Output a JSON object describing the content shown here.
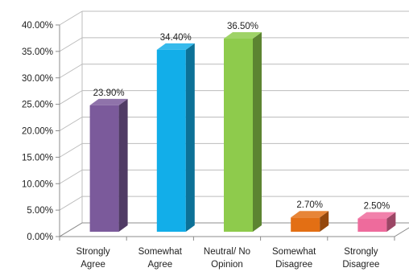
{
  "chart_data": {
    "type": "bar",
    "categories": [
      [
        "Strongly",
        "Agree"
      ],
      [
        "Somewhat",
        "Agree"
      ],
      [
        "Neutral/ No",
        "Opinion"
      ],
      [
        "Somewhat",
        "Disagree"
      ],
      [
        "Strongly",
        "Disagree"
      ]
    ],
    "values": [
      23.9,
      34.4,
      36.5,
      2.7,
      2.5
    ],
    "data_labels": [
      "23.90%",
      "34.40%",
      "36.50%",
      "2.70%",
      "2.50%"
    ],
    "colors": [
      "#7b5a9b",
      "#12aee9",
      "#8ecb4c",
      "#e36f14",
      "#ee6b9c"
    ],
    "ylim": [
      0,
      40
    ],
    "yticks": [
      {
        "value": 0,
        "label": "0.00%"
      },
      {
        "value": 5,
        "label": "5.00%"
      },
      {
        "value": 10,
        "label": "10.00%"
      },
      {
        "value": 15,
        "label": "15.00%"
      },
      {
        "value": 20,
        "label": "20.00%"
      },
      {
        "value": 25,
        "label": "25.00%"
      },
      {
        "value": 30,
        "label": "30.00%"
      },
      {
        "value": 35,
        "label": "35.00%"
      },
      {
        "value": 40,
        "label": "40.00%"
      }
    ],
    "grid": true,
    "style": "3d-column",
    "title": "",
    "xlabel": "",
    "ylabel": ""
  }
}
